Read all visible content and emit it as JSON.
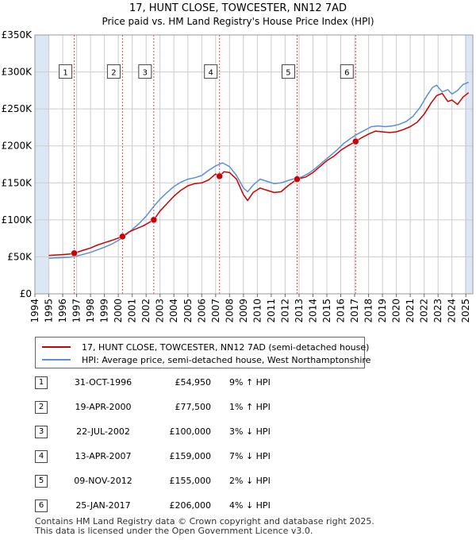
{
  "chart_data": {
    "type": "line",
    "title": "17, HUNT CLOSE, TOWCESTER, NN12 7AD",
    "subtitle": "Price paid vs. HM Land Registry's House Price Index (HPI)",
    "xlabel": "",
    "ylabel": "",
    "xlim": [
      1994,
      2025.5
    ],
    "ylim": [
      0,
      350000
    ],
    "y_ticks": [
      0,
      50000,
      100000,
      150000,
      200000,
      250000,
      300000,
      350000
    ],
    "y_tick_labels": [
      "£0",
      "£50K",
      "£100K",
      "£150K",
      "£200K",
      "£250K",
      "£300K",
      "£350K"
    ],
    "x_ticks": [
      1994,
      1995,
      1996,
      1997,
      1998,
      1999,
      2000,
      2001,
      2002,
      2003,
      2004,
      2005,
      2006,
      2007,
      2008,
      2009,
      2010,
      2011,
      2012,
      2013,
      2014,
      2015,
      2016,
      2017,
      2018,
      2019,
      2020,
      2021,
      2022,
      2023,
      2024,
      2025
    ],
    "grid": true,
    "legend_position": "below",
    "series": [
      {
        "name": "17, HUNT CLOSE, TOWCESTER, NN12 7AD (semi-detached house)",
        "color": "#cc0000",
        "x": [
          1995.0,
          1995.5,
          1996.0,
          1996.5,
          1996.83,
          1997.5,
          1998.0,
          1998.5,
          1999.0,
          1999.5,
          2000.3,
          2000.8,
          2001.3,
          2001.8,
          2002.55,
          2003.0,
          2003.5,
          2004.0,
          2004.5,
          2005.0,
          2005.5,
          2006.0,
          2006.5,
          2007.0,
          2007.28,
          2007.6,
          2008.0,
          2008.5,
          2009.0,
          2009.3,
          2009.7,
          2010.2,
          2010.7,
          2011.2,
          2011.7,
          2012.2,
          2012.86,
          2013.5,
          2014.0,
          2014.5,
          2015.0,
          2015.5,
          2016.0,
          2016.5,
          2017.07,
          2017.5,
          2018.0,
          2018.5,
          2019.0,
          2019.5,
          2020.0,
          2020.5,
          2021.0,
          2021.5,
          2022.0,
          2022.5,
          2022.9,
          2023.3,
          2023.7,
          2024.0,
          2024.4,
          2024.8,
          2025.2
        ],
        "values": [
          52000,
          52500,
          53000,
          53800,
          54950,
          59000,
          62000,
          66000,
          69000,
          72000,
          77500,
          84000,
          88000,
          92000,
          100000,
          112000,
          122000,
          132000,
          140000,
          146000,
          149000,
          150000,
          154000,
          162000,
          159000,
          165000,
          164000,
          155000,
          134000,
          126000,
          137000,
          143000,
          140000,
          137000,
          138000,
          146000,
          155000,
          158000,
          164000,
          172000,
          180000,
          186000,
          194000,
          200000,
          206000,
          211000,
          216000,
          220000,
          219000,
          218000,
          219000,
          222000,
          226000,
          232000,
          243000,
          258000,
          268000,
          271000,
          260000,
          262000,
          256000,
          266000,
          272000
        ]
      },
      {
        "name": "HPI: Average price, semi-detached house, West Northamptonshire",
        "color": "#5b8fd4",
        "x": [
          1995.0,
          1995.5,
          1996.0,
          1996.5,
          1997.0,
          1997.5,
          1998.0,
          1998.5,
          1999.0,
          1999.5,
          2000.0,
          2000.5,
          2001.0,
          2001.5,
          2002.0,
          2002.5,
          2003.0,
          2003.5,
          2004.0,
          2004.5,
          2005.0,
          2005.5,
          2006.0,
          2006.5,
          2007.0,
          2007.5,
          2008.0,
          2008.5,
          2009.0,
          2009.3,
          2009.7,
          2010.2,
          2010.7,
          2011.2,
          2011.7,
          2012.2,
          2012.7,
          2013.2,
          2013.7,
          2014.2,
          2014.7,
          2015.2,
          2015.7,
          2016.2,
          2016.7,
          2017.2,
          2017.7,
          2018.2,
          2018.7,
          2019.2,
          2019.7,
          2020.2,
          2020.7,
          2021.2,
          2021.7,
          2022.2,
          2022.6,
          2022.9,
          2023.3,
          2023.7,
          2024.0,
          2024.4,
          2024.8,
          2025.2
        ],
        "values": [
          48000,
          48500,
          49000,
          49500,
          51000,
          53500,
          56000,
          59500,
          63000,
          67000,
          72000,
          79000,
          87000,
          95000,
          105000,
          117000,
          128000,
          137000,
          145000,
          151000,
          155000,
          157000,
          160000,
          167000,
          173000,
          177000,
          172000,
          160000,
          143000,
          138000,
          147000,
          155000,
          152000,
          149000,
          150000,
          153000,
          156000,
          158000,
          163000,
          170000,
          178000,
          186000,
          194000,
          203000,
          210000,
          216000,
          221000,
          226000,
          227000,
          226000,
          227000,
          229000,
          233000,
          240000,
          252000,
          268000,
          279000,
          282000,
          273000,
          276000,
          270000,
          275000,
          283000,
          286000
        ]
      }
    ],
    "sale_points": [
      {
        "label": "1",
        "x": 1996.83,
        "value": 54950
      },
      {
        "label": "2",
        "x": 2000.3,
        "value": 77500
      },
      {
        "label": "3",
        "x": 2002.55,
        "value": 100000
      },
      {
        "label": "4",
        "x": 2007.28,
        "value": 159000
      },
      {
        "label": "5",
        "x": 2012.86,
        "value": 155000
      },
      {
        "label": "6",
        "x": 2017.07,
        "value": 206000
      }
    ],
    "shaded_regions": [
      {
        "start": 1994.0,
        "end": 1995.0
      },
      {
        "start": 2024.92,
        "end": 2025.5
      }
    ],
    "marker_label_value": 300000,
    "colors": {
      "property": "#cc0000",
      "hpi": "#5b8fd4",
      "marker": "#cc0000",
      "grid": "#cccccc",
      "band": "#dce7f5"
    }
  },
  "legend": {
    "property_label": "17, HUNT CLOSE, TOWCESTER, NN12 7AD (semi-detached house)",
    "hpi_label": "HPI: Average price, semi-detached house, West Northamptonshire"
  },
  "sales_table": [
    {
      "num": "1",
      "date": "31-OCT-1996",
      "price": "£54,950",
      "hpi": "9% ↑ HPI"
    },
    {
      "num": "2",
      "date": "19-APR-2000",
      "price": "£77,500",
      "hpi": "1% ↑ HPI"
    },
    {
      "num": "3",
      "date": "22-JUL-2002",
      "price": "£100,000",
      "hpi": "3% ↓ HPI"
    },
    {
      "num": "4",
      "date": "13-APR-2007",
      "price": "£159,000",
      "hpi": "7% ↓ HPI"
    },
    {
      "num": "5",
      "date": "09-NOV-2012",
      "price": "£155,000",
      "hpi": "2% ↓ HPI"
    },
    {
      "num": "6",
      "date": "25-JAN-2017",
      "price": "£206,000",
      "hpi": "4% ↓ HPI"
    }
  ],
  "footer": {
    "line1": "Contains HM Land Registry data © Crown copyright and database right 2025.",
    "line2": "This data is licensed under the Open Government Licence v3.0."
  }
}
